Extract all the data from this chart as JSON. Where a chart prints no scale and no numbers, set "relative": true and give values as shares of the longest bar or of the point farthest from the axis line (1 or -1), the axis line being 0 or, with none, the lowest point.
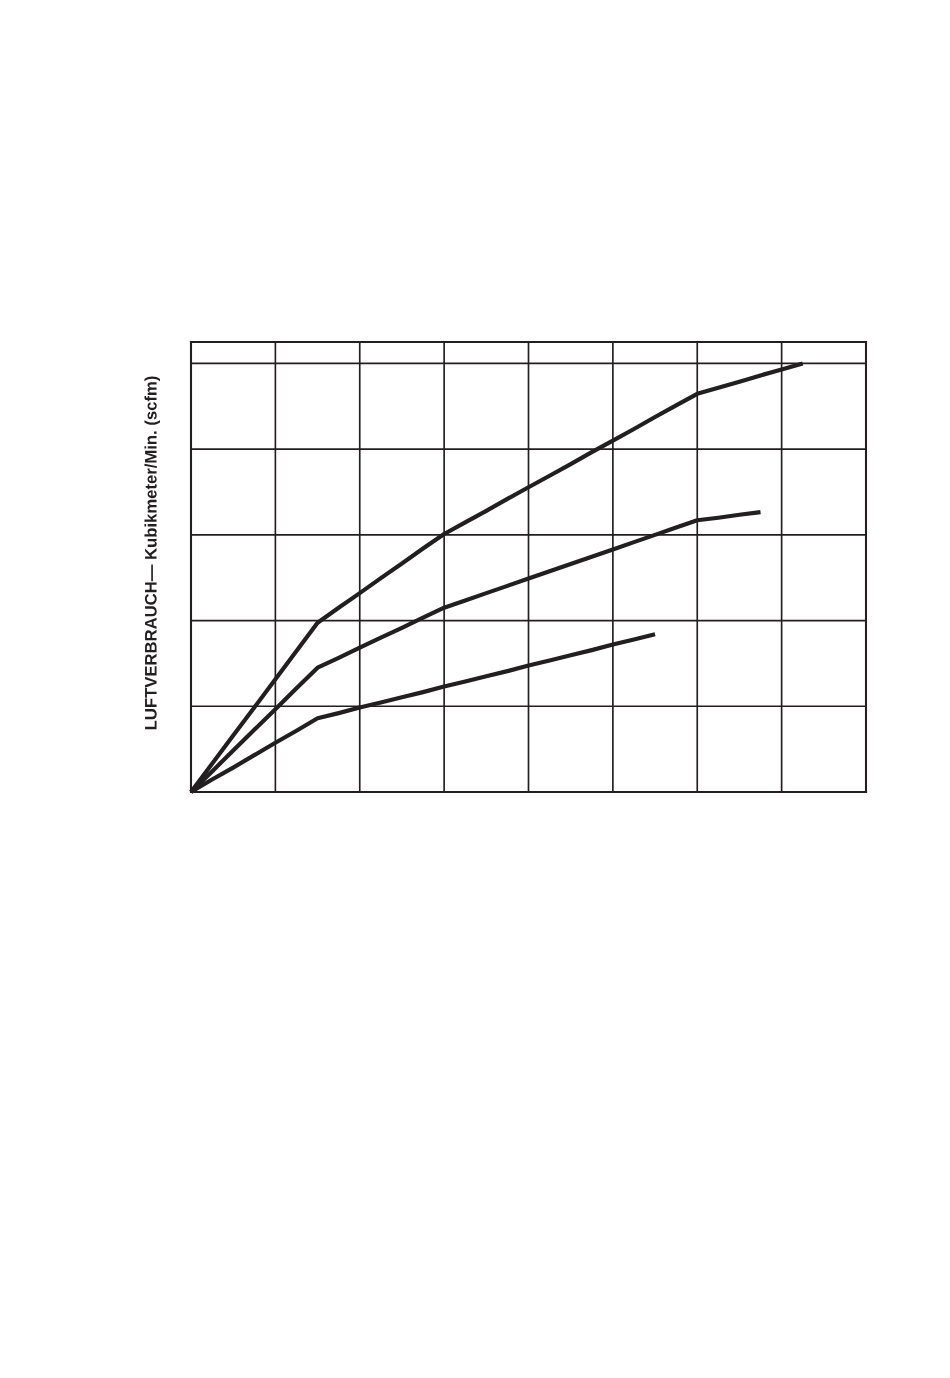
{
  "chart_data": {
    "type": "line",
    "relative": true,
    "ylabel": "LUFTVERBRAUCH— Kubikmeter/Min. (scfm)",
    "categories": [
      null,
      null,
      null,
      null,
      null,
      null,
      null,
      null,
      null,
      null,
      null,
      null,
      null,
      null,
      null,
      null,
      null,
      null,
      null,
      null,
      null,
      null,
      null,
      null,
      null,
      null,
      null,
      null,
      null,
      null,
      null,
      null,
      null
    ],
    "grid": true,
    "marker": "none",
    "line_style": "solid",
    "series": [
      {
        "color": "#231f20",
        "values": [
          0,
          0.066,
          0.132,
          0.197,
          0.263,
          0.329,
          0.395,
          0.43,
          0.464,
          0.499,
          0.533,
          0.568,
          0.602,
          0.629,
          0.656,
          0.684,
          0.711,
          0.738,
          0.765,
          0.793,
          0.82,
          0.847,
          0.875,
          0.902,
          0.929,
          0.943,
          0.957,
          0.972,
          0.986,
          1,
          null,
          null,
          null
        ]
      },
      {
        "color": "#231f20",
        "values": [
          0,
          0.048,
          0.097,
          0.145,
          0.193,
          0.242,
          0.29,
          0.313,
          0.337,
          0.36,
          0.383,
          0.407,
          0.43,
          0.447,
          0.464,
          0.481,
          0.498,
          0.515,
          0.532,
          0.549,
          0.566,
          0.583,
          0.6,
          0.617,
          0.634,
          0.64,
          0.647,
          0.653,
          null,
          null,
          null,
          null,
          null
        ]
      },
      {
        "color": "#231f20",
        "values": [
          0,
          0.029,
          0.057,
          0.086,
          0.115,
          0.143,
          0.172,
          0.184,
          0.197,
          0.209,
          0.221,
          0.233,
          0.246,
          0.258,
          0.27,
          0.282,
          0.295,
          0.307,
          0.319,
          0.331,
          0.344,
          0.356,
          0.368,
          null,
          null,
          null,
          null,
          null,
          null,
          null,
          null,
          null,
          null
        ]
      }
    ]
  }
}
